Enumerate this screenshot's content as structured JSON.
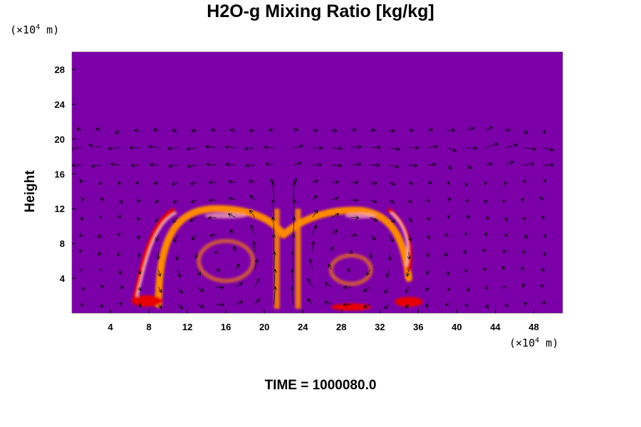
{
  "chart_data": {
    "type": "heatmap",
    "title": "H2O-g Mixing Ratio [kg/kg]",
    "xlabel": "",
    "ylabel": "Height",
    "x_unit_prefix": "(×10",
    "x_unit_exp": "4",
    "x_unit_suffix": " m)",
    "y_unit_prefix": "(×10",
    "y_unit_exp": "4",
    "y_unit_suffix": " m)",
    "xlim": [
      0,
      51
    ],
    "ylim": [
      0,
      30
    ],
    "xticks": [
      4,
      8,
      12,
      16,
      20,
      24,
      28,
      32,
      36,
      40,
      44,
      48
    ],
    "yticks": [
      4,
      8,
      12,
      16,
      20,
      24,
      28
    ],
    "overlay": "wind vectors",
    "colors": {
      "background": "#7b00a8",
      "low": "#7b00a8",
      "blue": "#1a3cff",
      "cyan": "#00e0e8",
      "green": "#22e63a",
      "yellow": "#f2f200",
      "orange": "#ff8a00",
      "red": "#e80000",
      "pink": "#ffb4b4"
    }
  },
  "footer": {
    "time_label": "TIME = 1000080.0"
  }
}
